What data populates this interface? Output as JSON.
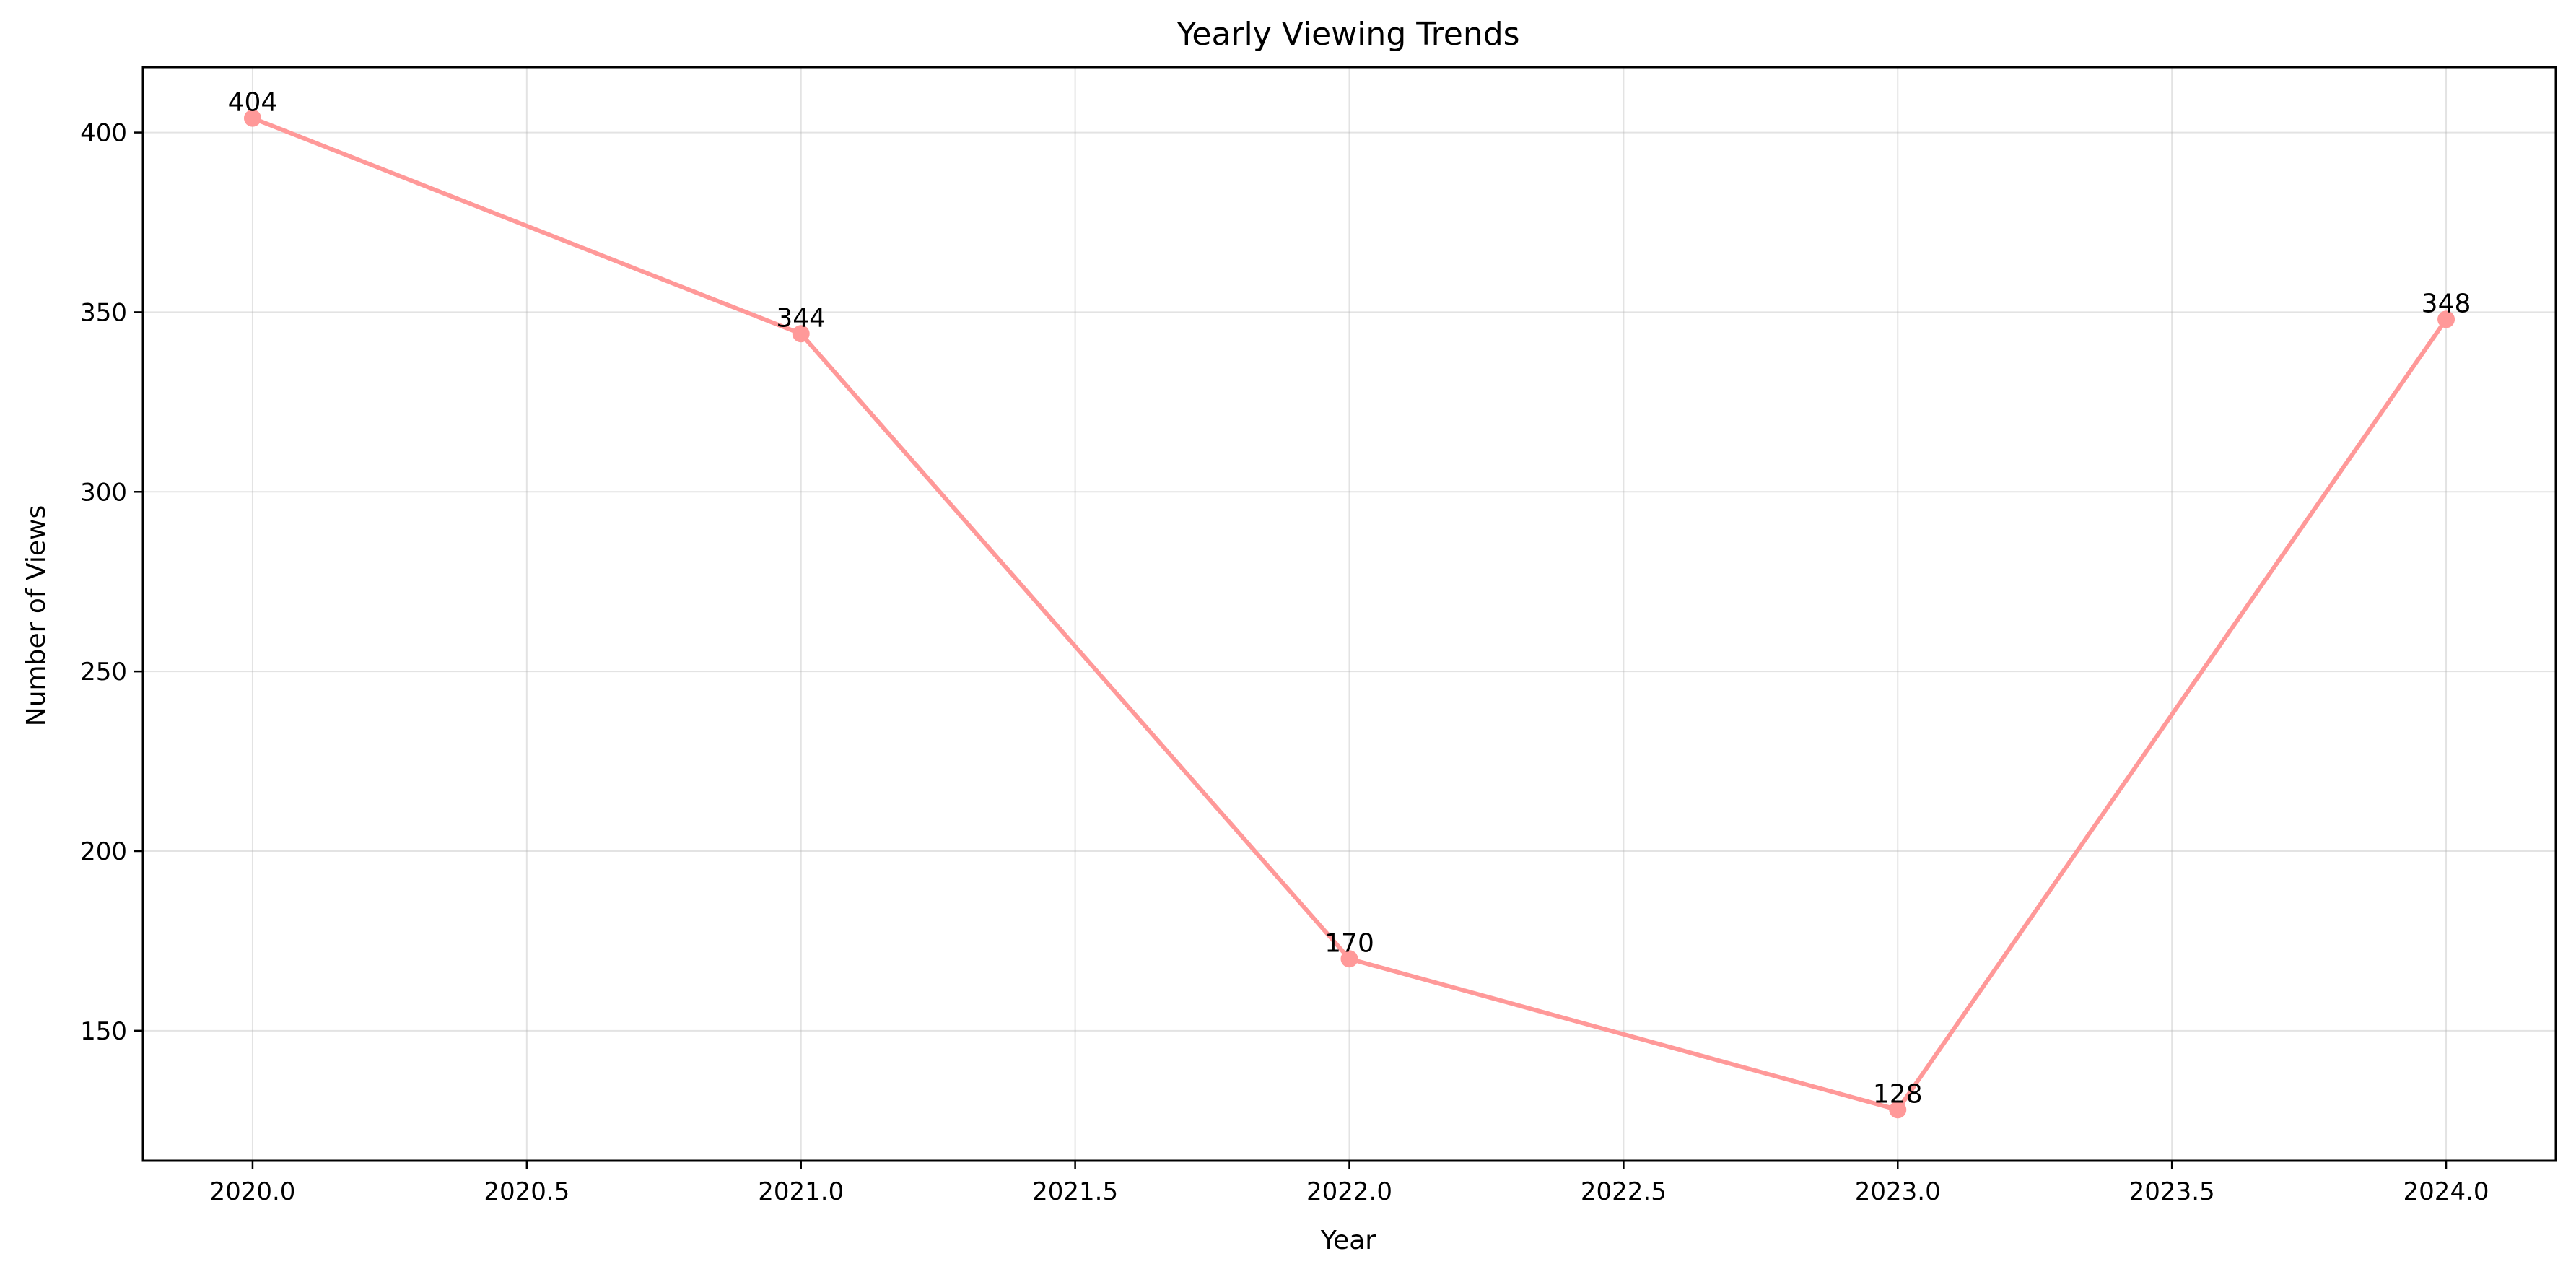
{
  "chart_data": {
    "type": "line",
    "title": "Yearly Viewing Trends",
    "xlabel": "Year",
    "ylabel": "Number of Views",
    "x": [
      2020,
      2021,
      2022,
      2023,
      2024
    ],
    "series": [
      {
        "values": [
          404,
          344,
          170,
          128,
          348
        ],
        "color": "#ff9999"
      }
    ],
    "data_labels": [
      "404",
      "344",
      "170",
      "128",
      "348"
    ],
    "xlim": [
      2019.8,
      2024.2
    ],
    "ylim": [
      113.8,
      418.2
    ],
    "x_ticks": [
      2020.0,
      2020.5,
      2021.0,
      2021.5,
      2022.0,
      2022.5,
      2023.0,
      2023.5,
      2024.0
    ],
    "x_tick_labels": [
      "2020.0",
      "2020.5",
      "2021.0",
      "2021.5",
      "2022.0",
      "2022.5",
      "2023.0",
      "2023.5",
      "2024.0"
    ],
    "y_ticks": [
      150,
      200,
      250,
      300,
      350,
      400
    ],
    "y_tick_labels": [
      "150",
      "200",
      "250",
      "300",
      "350",
      "400"
    ],
    "grid": true,
    "legend": false
  }
}
